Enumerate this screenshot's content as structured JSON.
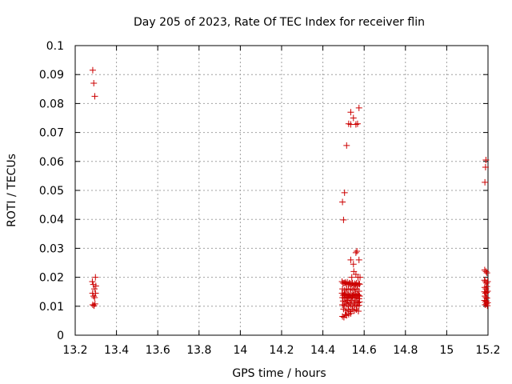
{
  "chart_data": {
    "type": "scatter",
    "title": "Day 205 of 2023, Rate Of TEC Index for receiver flin",
    "xlabel": "GPS time / hours",
    "ylabel": "ROTI / TECUs",
    "xlim": [
      13.2,
      15.2
    ],
    "ylim": [
      0,
      0.1
    ],
    "xticks": [
      "13.2",
      "13.4",
      "13.6",
      "13.8",
      "14",
      "14.2",
      "14.4",
      "14.6",
      "14.8",
      "15",
      "15.2"
    ],
    "yticks": [
      "0",
      "0.01",
      "0.02",
      "0.03",
      "0.04",
      "0.05",
      "0.06",
      "0.07",
      "0.08",
      "0.09",
      "0.1"
    ],
    "grid": true,
    "marker": "+",
    "color": "#cc0000",
    "points": [
      [
        13.285,
        0.0915
      ],
      [
        13.29,
        0.087
      ],
      [
        13.295,
        0.0825
      ],
      [
        13.283,
        0.0185
      ],
      [
        13.288,
        0.0175
      ],
      [
        13.293,
        0.016
      ],
      [
        13.298,
        0.02
      ],
      [
        13.284,
        0.0145
      ],
      [
        13.289,
        0.0135
      ],
      [
        13.294,
        0.013
      ],
      [
        13.299,
        0.0145
      ],
      [
        13.285,
        0.0105
      ],
      [
        13.291,
        0.0102
      ],
      [
        13.296,
        0.0108
      ],
      [
        13.3,
        0.017
      ],
      [
        14.495,
        0.046
      ],
      [
        14.5,
        0.0398
      ],
      [
        14.505,
        0.0492
      ],
      [
        14.515,
        0.0655
      ],
      [
        14.535,
        0.077
      ],
      [
        14.548,
        0.075
      ],
      [
        14.525,
        0.073
      ],
      [
        14.535,
        0.0728
      ],
      [
        14.56,
        0.0728
      ],
      [
        14.568,
        0.073
      ],
      [
        14.575,
        0.0785
      ],
      [
        14.565,
        0.029
      ],
      [
        14.56,
        0.0285
      ],
      [
        14.535,
        0.026
      ],
      [
        14.575,
        0.026
      ],
      [
        14.548,
        0.0245
      ],
      [
        14.55,
        0.022
      ],
      [
        14.56,
        0.021
      ],
      [
        14.57,
        0.02
      ],
      [
        14.54,
        0.02
      ],
      [
        14.58,
        0.02
      ],
      [
        14.493,
        0.0185
      ],
      [
        14.498,
        0.018
      ],
      [
        14.503,
        0.018
      ],
      [
        14.508,
        0.0182
      ],
      [
        14.513,
        0.0178
      ],
      [
        14.518,
        0.0183
      ],
      [
        14.523,
        0.0175
      ],
      [
        14.528,
        0.018
      ],
      [
        14.533,
        0.0178
      ],
      [
        14.538,
        0.0176
      ],
      [
        14.543,
        0.018
      ],
      [
        14.548,
        0.0172
      ],
      [
        14.553,
        0.0178
      ],
      [
        14.558,
        0.0175
      ],
      [
        14.563,
        0.018
      ],
      [
        14.568,
        0.0172
      ],
      [
        14.573,
        0.0178
      ],
      [
        14.578,
        0.0176
      ],
      [
        14.495,
        0.016
      ],
      [
        14.505,
        0.0155
      ],
      [
        14.515,
        0.016
      ],
      [
        14.525,
        0.0158
      ],
      [
        14.535,
        0.016
      ],
      [
        14.545,
        0.0155
      ],
      [
        14.555,
        0.016
      ],
      [
        14.565,
        0.0158
      ],
      [
        14.575,
        0.0152
      ],
      [
        14.493,
        0.0145
      ],
      [
        14.498,
        0.0138
      ],
      [
        14.503,
        0.014
      ],
      [
        14.508,
        0.0142
      ],
      [
        14.513,
        0.0137
      ],
      [
        14.518,
        0.0142
      ],
      [
        14.523,
        0.0138
      ],
      [
        14.528,
        0.0135
      ],
      [
        14.533,
        0.014
      ],
      [
        14.538,
        0.0137
      ],
      [
        14.543,
        0.0135
      ],
      [
        14.548,
        0.014
      ],
      [
        14.553,
        0.0138
      ],
      [
        14.558,
        0.0142
      ],
      [
        14.563,
        0.0135
      ],
      [
        14.568,
        0.014
      ],
      [
        14.573,
        0.0138
      ],
      [
        14.578,
        0.0135
      ],
      [
        14.495,
        0.013
      ],
      [
        14.505,
        0.0128
      ],
      [
        14.515,
        0.013
      ],
      [
        14.525,
        0.0132
      ],
      [
        14.535,
        0.0128
      ],
      [
        14.545,
        0.013
      ],
      [
        14.555,
        0.0128
      ],
      [
        14.565,
        0.013
      ],
      [
        14.575,
        0.0126
      ],
      [
        14.498,
        0.0118
      ],
      [
        14.51,
        0.0115
      ],
      [
        14.52,
        0.012
      ],
      [
        14.53,
        0.0112
      ],
      [
        14.54,
        0.0118
      ],
      [
        14.55,
        0.0112
      ],
      [
        14.56,
        0.0118
      ],
      [
        14.57,
        0.0112
      ],
      [
        14.578,
        0.0115
      ],
      [
        14.495,
        0.0105
      ],
      [
        14.505,
        0.0102
      ],
      [
        14.515,
        0.0108
      ],
      [
        14.525,
        0.01
      ],
      [
        14.535,
        0.0105
      ],
      [
        14.545,
        0.01
      ],
      [
        14.555,
        0.0105
      ],
      [
        14.565,
        0.01
      ],
      [
        14.575,
        0.0103
      ],
      [
        14.5,
        0.009
      ],
      [
        14.512,
        0.0085
      ],
      [
        14.522,
        0.0088
      ],
      [
        14.532,
        0.0082
      ],
      [
        14.542,
        0.009
      ],
      [
        14.552,
        0.0085
      ],
      [
        14.562,
        0.0088
      ],
      [
        14.572,
        0.0083
      ],
      [
        14.495,
        0.0065
      ],
      [
        14.502,
        0.0062
      ],
      [
        14.508,
        0.007
      ],
      [
        14.515,
        0.0068
      ],
      [
        14.525,
        0.0072
      ],
      [
        14.535,
        0.0075
      ],
      [
        15.19,
        0.0605
      ],
      [
        15.188,
        0.058
      ],
      [
        15.185,
        0.0528
      ],
      [
        15.184,
        0.0225
      ],
      [
        15.19,
        0.022
      ],
      [
        15.195,
        0.0215
      ],
      [
        15.183,
        0.019
      ],
      [
        15.188,
        0.0185
      ],
      [
        15.193,
        0.018
      ],
      [
        15.198,
        0.0185
      ],
      [
        15.184,
        0.0165
      ],
      [
        15.19,
        0.016
      ],
      [
        15.195,
        0.0168
      ],
      [
        15.183,
        0.015
      ],
      [
        15.188,
        0.0145
      ],
      [
        15.193,
        0.0148
      ],
      [
        15.198,
        0.0152
      ],
      [
        15.185,
        0.0135
      ],
      [
        15.19,
        0.013
      ],
      [
        15.195,
        0.0128
      ],
      [
        15.183,
        0.012
      ],
      [
        15.188,
        0.0115
      ],
      [
        15.193,
        0.0118
      ],
      [
        15.198,
        0.0112
      ],
      [
        15.186,
        0.0105
      ],
      [
        15.192,
        0.0108
      ],
      [
        15.197,
        0.0102
      ]
    ]
  }
}
